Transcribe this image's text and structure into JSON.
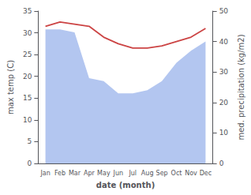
{
  "chart_data": {
    "type": "line",
    "categories": [
      "Jan",
      "Feb",
      "Mar",
      "Apr",
      "May",
      "Jun",
      "Jul",
      "Aug",
      "Sep",
      "Oct",
      "Nov",
      "Dec"
    ],
    "series": [
      {
        "type": "area",
        "color": "#b3c6f0",
        "axis": "y2",
        "values": [
          44,
          44,
          43,
          28,
          27,
          23,
          23,
          24,
          27,
          33,
          37,
          40
        ]
      },
      {
        "type": "line",
        "color": "#cc4444",
        "values": [
          31.5,
          32.5,
          32.0,
          31.5,
          29.0,
          27.5,
          26.5,
          26.5,
          27.0,
          28.0,
          29.0,
          31.0
        ]
      }
    ],
    "xlabel": "date (month)",
    "ylabel": "max temp (C)",
    "y2label": "med. precipitation (kg/m2)",
    "ylim": [
      0,
      35
    ],
    "yticks": [
      0,
      5,
      10,
      15,
      20,
      25,
      30,
      35
    ],
    "y2lim": [
      0,
      50
    ],
    "y2ticks": [
      0,
      10,
      20,
      30,
      40,
      50
    ],
    "grid": false
  }
}
